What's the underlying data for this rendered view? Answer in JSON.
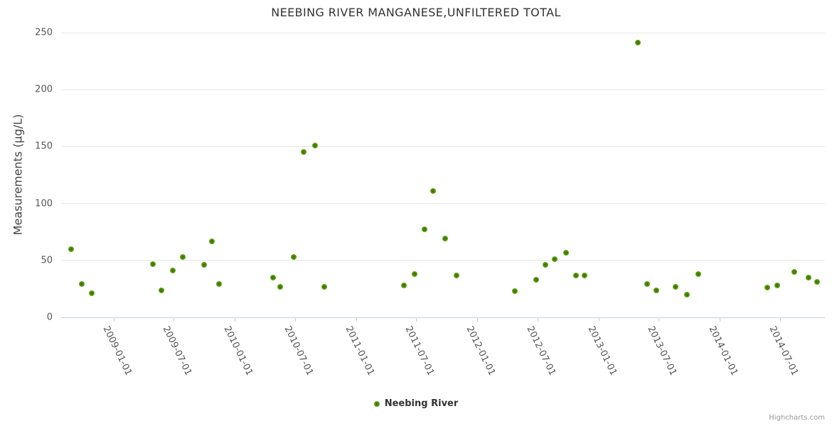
{
  "header": {
    "title": "NEEBING RIVER MANGANESE,UNFILTERED TOTAL"
  },
  "credits": {
    "label": "Highcharts.com"
  },
  "legend": {
    "items": [
      {
        "label": "Neebing River",
        "marker": "circle-marker-icon"
      }
    ]
  },
  "colors": {
    "point_outer": "#7fb831",
    "point_inner": "#417d04",
    "grid": "#e6e6e6",
    "axis_line": "#c0d0e0",
    "tick_label": "#555555",
    "title": "#333333",
    "credits": "#999999"
  },
  "chart_data": {
    "type": "scatter",
    "title": "NEEBING RIVER MANGANESE,UNFILTERED TOTAL",
    "xlabel": "",
    "ylabel": "Measurements (µg/L)",
    "ylim": [
      0,
      250
    ],
    "yticks": [
      0,
      50,
      100,
      150,
      200,
      250
    ],
    "xticks": [
      "2009-01-01",
      "2009-07-01",
      "2010-01-01",
      "2010-07-01",
      "2011-01-01",
      "2011-07-01",
      "2012-01-01",
      "2012-07-01",
      "2013-01-01",
      "2013-07-01",
      "2014-01-01",
      "2014-07-01"
    ],
    "grid": true,
    "legend_position": "bottom-center",
    "series": [
      {
        "name": "Neebing River",
        "points": [
          {
            "date": "2008-08-25",
            "value": 60
          },
          {
            "date": "2008-09-26",
            "value": 29
          },
          {
            "date": "2008-10-26",
            "value": 21
          },
          {
            "date": "2009-04-28",
            "value": 47
          },
          {
            "date": "2009-05-24",
            "value": 24
          },
          {
            "date": "2009-06-27",
            "value": 41
          },
          {
            "date": "2009-07-27",
            "value": 53
          },
          {
            "date": "2009-09-30",
            "value": 46
          },
          {
            "date": "2009-10-23",
            "value": 67
          },
          {
            "date": "2009-11-14",
            "value": 29
          },
          {
            "date": "2010-04-26",
            "value": 35
          },
          {
            "date": "2010-05-17",
            "value": 27
          },
          {
            "date": "2010-06-27",
            "value": 53
          },
          {
            "date": "2010-07-27",
            "value": 145
          },
          {
            "date": "2010-08-30",
            "value": 151
          },
          {
            "date": "2010-09-27",
            "value": 27
          },
          {
            "date": "2011-05-25",
            "value": 28
          },
          {
            "date": "2011-06-26",
            "value": 38
          },
          {
            "date": "2011-07-26",
            "value": 77
          },
          {
            "date": "2011-08-21",
            "value": 111
          },
          {
            "date": "2011-09-26",
            "value": 69
          },
          {
            "date": "2011-10-30",
            "value": 37
          },
          {
            "date": "2012-04-23",
            "value": 23
          },
          {
            "date": "2012-06-26",
            "value": 33
          },
          {
            "date": "2012-07-24",
            "value": 46
          },
          {
            "date": "2012-08-21",
            "value": 51
          },
          {
            "date": "2012-09-24",
            "value": 57
          },
          {
            "date": "2012-10-24",
            "value": 37
          },
          {
            "date": "2012-11-19",
            "value": 37
          },
          {
            "date": "2013-04-29",
            "value": 241
          },
          {
            "date": "2013-05-27",
            "value": 29
          },
          {
            "date": "2013-06-24",
            "value": 24
          },
          {
            "date": "2013-08-21",
            "value": 27
          },
          {
            "date": "2013-09-24",
            "value": 20
          },
          {
            "date": "2013-10-29",
            "value": 38
          },
          {
            "date": "2014-05-25",
            "value": 26
          },
          {
            "date": "2014-06-24",
            "value": 28
          },
          {
            "date": "2014-08-14",
            "value": 40
          },
          {
            "date": "2014-09-26",
            "value": 35
          },
          {
            "date": "2014-10-20",
            "value": 31
          }
        ]
      }
    ]
  }
}
